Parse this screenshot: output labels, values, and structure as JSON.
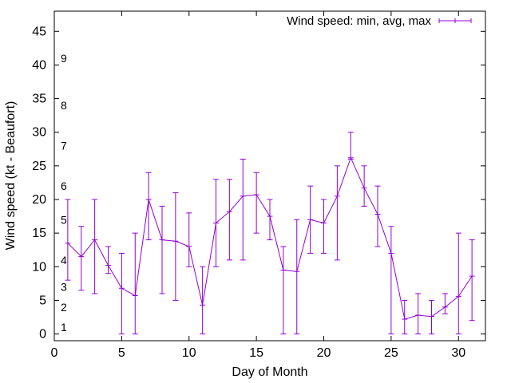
{
  "chart_data": {
    "type": "line",
    "xlabel": "Day of Month",
    "ylabel": "Wind speed (kt - Beaufort)",
    "xlim": [
      0,
      32
    ],
    "ylim": [
      -1,
      48
    ],
    "xticks": [
      0,
      5,
      10,
      15,
      20,
      25,
      30
    ],
    "yticks": [
      0,
      5,
      10,
      15,
      20,
      25,
      30,
      35,
      40,
      45
    ],
    "grid": false,
    "legend": {
      "placement": "top-right"
    },
    "beaufort_labels": [
      {
        "label": "1",
        "y": 1
      },
      {
        "label": "2",
        "y": 4
      },
      {
        "label": "3",
        "y": 7
      },
      {
        "label": "4",
        "y": 11
      },
      {
        "label": "5",
        "y": 17
      },
      {
        "label": "6",
        "y": 22
      },
      {
        "label": "7",
        "y": 28
      },
      {
        "label": "8",
        "y": 34
      },
      {
        "label": "9",
        "y": 41
      }
    ],
    "series": [
      {
        "name": "Wind speed: min, avg, max",
        "color": "#9400d3",
        "x": [
          1,
          2,
          3,
          4,
          5,
          6,
          7,
          8,
          9,
          10,
          11,
          12,
          13,
          14,
          15,
          16,
          17,
          18,
          19,
          20,
          21,
          22,
          23,
          24,
          25,
          26,
          27,
          28,
          29,
          30,
          31
        ],
        "avg": [
          13.5,
          11.5,
          14,
          10.2,
          6.8,
          5.7,
          20,
          14,
          13.8,
          13,
          4.3,
          16.5,
          18.2,
          20.5,
          20.7,
          17.5,
          9.5,
          9.3,
          17,
          16.5,
          20.5,
          26.2,
          21.7,
          17.8,
          12,
          2.2,
          2.8,
          2.6,
          4,
          5.6,
          8.6
        ],
        "min": [
          8,
          6.5,
          6,
          9,
          0,
          0,
          14,
          6,
          5,
          10,
          0,
          10,
          11,
          11,
          15,
          14,
          0,
          0,
          12,
          12,
          11,
          26,
          19,
          13,
          0,
          0,
          0,
          0,
          3,
          0,
          2
        ],
        "max": [
          20,
          16,
          20,
          13,
          12,
          15,
          24,
          19,
          21,
          18,
          10,
          23,
          23,
          26,
          24,
          20,
          13,
          17,
          22,
          20,
          25,
          30,
          25,
          22,
          16,
          5,
          6,
          5,
          6,
          15,
          14
        ]
      }
    ]
  }
}
